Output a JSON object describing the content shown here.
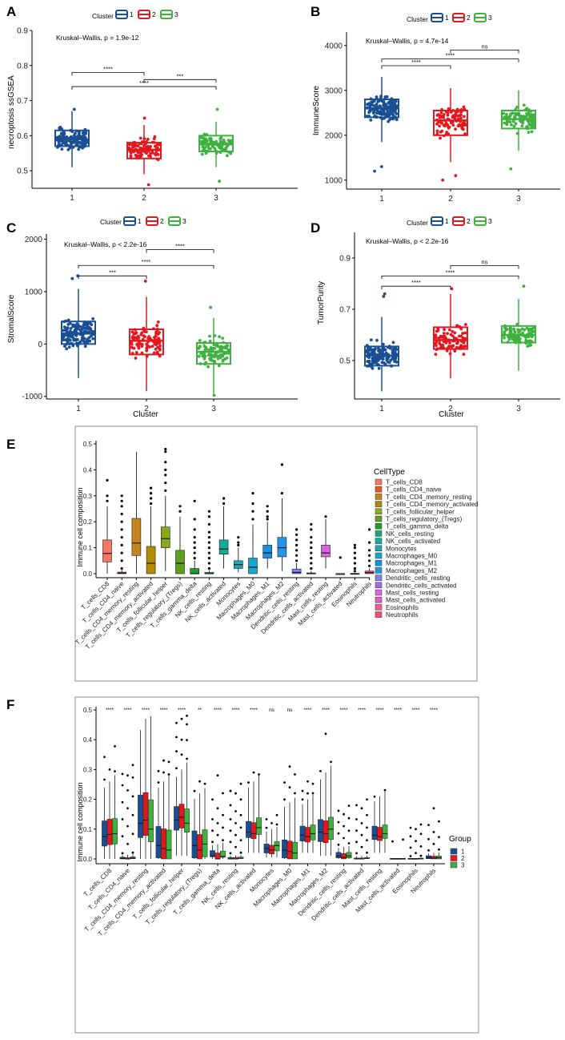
{
  "colors": {
    "c1": "#1B4F93",
    "c2": "#E3181F",
    "c3": "#3EB13E"
  },
  "panels": [
    {
      "label": "A",
      "legend_title": "Cluster",
      "legend_items": [
        "1",
        "2",
        "3"
      ],
      "ylabel": "necroptosis ssGSEA",
      "xlabel": "",
      "stat": "Kruskal–Wallis, p = 1.9e-12",
      "ylim": [
        0.45,
        0.9
      ],
      "yticks": [
        "0.5",
        "0.6",
        "0.7",
        "0.8",
        "0.9"
      ],
      "ytick_values": [
        0.5,
        0.6,
        0.7,
        0.8,
        0.9
      ],
      "categories": [
        "1",
        "2",
        "3"
      ],
      "boxes": [
        {
          "q1": 0.57,
          "med": 0.59,
          "q3": 0.615,
          "lo": 0.51,
          "hi": 0.67,
          "n": 150
        },
        {
          "q1": 0.535,
          "med": 0.56,
          "q3": 0.58,
          "lo": 0.49,
          "hi": 0.63,
          "n": 95
        },
        {
          "q1": 0.555,
          "med": 0.575,
          "q3": 0.6,
          "lo": 0.51,
          "hi": 0.64,
          "n": 95
        }
      ],
      "outliers": [
        [
          0,
          0.675
        ],
        [
          1,
          0.46
        ],
        [
          1,
          0.65
        ],
        [
          2,
          0.47
        ],
        [
          2,
          0.675
        ]
      ],
      "comparisons": [
        {
          "from": 0,
          "to": 1,
          "value": 0.78,
          "label": "****"
        },
        {
          "from": 0,
          "to": 2,
          "value": 0.74,
          "label": "****"
        },
        {
          "from": 1,
          "to": 2,
          "value": 0.76,
          "label": "***"
        }
      ]
    },
    {
      "label": "B",
      "legend_title": "Cluster",
      "legend_items": [
        "1",
        "2",
        "3"
      ],
      "ylabel": "ImmuneScore",
      "xlabel": "",
      "stat": "Kruskal–Wallis, p = 4.7e-14",
      "ylim": [
        800,
        4300
      ],
      "yticks": [
        "1000",
        "2000",
        "3000",
        "4000"
      ],
      "ytick_values": [
        1000,
        2000,
        3000,
        4000
      ],
      "categories": [
        "1",
        "2",
        "3"
      ],
      "boxes": [
        {
          "q1": 2400,
          "med": 2600,
          "q3": 2800,
          "lo": 1850,
          "hi": 3300,
          "n": 150
        },
        {
          "q1": 2000,
          "med": 2330,
          "q3": 2550,
          "lo": 1400,
          "hi": 3050,
          "n": 95
        },
        {
          "q1": 2150,
          "med": 2360,
          "q3": 2550,
          "lo": 1650,
          "hi": 3000,
          "n": 95
        }
      ],
      "outliers": [
        [
          0,
          1200
        ],
        [
          0,
          1300
        ],
        [
          1,
          1000
        ],
        [
          1,
          1100
        ],
        [
          2,
          1250
        ]
      ],
      "comparisons": [
        {
          "from": 0,
          "to": 1,
          "value": 3550,
          "label": "****"
        },
        {
          "from": 0,
          "to": 2,
          "value": 3700,
          "label": "****"
        },
        {
          "from": 1,
          "to": 2,
          "value": 3900,
          "label": "ns"
        }
      ]
    },
    {
      "label": "C",
      "legend_title": "Cluster",
      "legend_items": [
        "1",
        "2",
        "3"
      ],
      "ylabel": "StromalScore",
      "xlabel": "Cluster",
      "stat": "Kruskal–Wallis, p < 2.2e-16",
      "ylim": [
        -1050,
        2100
      ],
      "yticks": [
        "-1000",
        "0",
        "1000",
        "2000"
      ],
      "ytick_values": [
        -1000,
        0,
        1000,
        2000
      ],
      "categories": [
        "1",
        "2",
        "3"
      ],
      "boxes": [
        {
          "q1": 0,
          "med": 200,
          "q3": 430,
          "lo": -650,
          "hi": 1050,
          "n": 150
        },
        {
          "q1": -200,
          "med": 60,
          "q3": 280,
          "lo": -900,
          "hi": 900,
          "n": 95
        },
        {
          "q1": -380,
          "med": -150,
          "q3": 20,
          "lo": -950,
          "hi": 500,
          "n": 95
        }
      ],
      "outliers": [
        [
          0,
          1250
        ],
        [
          0,
          1300
        ],
        [
          1,
          1200
        ],
        [
          2,
          700
        ],
        [
          2,
          -980
        ]
      ],
      "comparisons": [
        {
          "from": 0,
          "to": 1,
          "value": 1300,
          "label": "***"
        },
        {
          "from": 0,
          "to": 2,
          "value": 1500,
          "label": "****"
        },
        {
          "from": 1,
          "to": 2,
          "value": 1800,
          "label": "****"
        }
      ]
    },
    {
      "label": "D",
      "legend_title": "Cluster",
      "legend_items": [
        "1",
        "2",
        "3"
      ],
      "ylabel": "TumorPurity",
      "xlabel": "Cluster",
      "stat": "Kruskal–Wallis, p < 2.2e-16",
      "ylim": [
        0.35,
        1.0
      ],
      "yticks": [
        "0.5",
        "0.7",
        "0.9"
      ],
      "ytick_values": [
        0.5,
        0.7,
        0.9
      ],
      "categories": [
        "1",
        "2",
        "3"
      ],
      "boxes": [
        {
          "q1": 0.48,
          "med": 0.52,
          "q3": 0.555,
          "lo": 0.38,
          "hi": 0.67,
          "n": 150
        },
        {
          "q1": 0.545,
          "med": 0.58,
          "q3": 0.63,
          "lo": 0.43,
          "hi": 0.76,
          "n": 95
        },
        {
          "q1": 0.57,
          "med": 0.6,
          "q3": 0.635,
          "lo": 0.46,
          "hi": 0.74,
          "n": 95
        }
      ],
      "outliers": [
        [
          0,
          0.75
        ],
        [
          0,
          0.76
        ],
        [
          1,
          0.78
        ],
        [
          2,
          0.79
        ]
      ],
      "comparisons": [
        {
          "from": 0,
          "to": 1,
          "value": 0.79,
          "label": "****"
        },
        {
          "from": 0,
          "to": 2,
          "value": 0.83,
          "label": "****"
        },
        {
          "from": 1,
          "to": 2,
          "value": 0.87,
          "label": "ns"
        }
      ]
    }
  ],
  "chart_data": [
    {
      "type": "box",
      "panel": "A",
      "title": "",
      "xlabel": "",
      "ylabel": "necroptosis ssGSEA",
      "categories": [
        "1",
        "2",
        "3"
      ],
      "medians": [
        0.59,
        0.56,
        0.575
      ],
      "annotation": "Kruskal–Wallis, p = 1.9e-12"
    },
    {
      "type": "box",
      "panel": "B",
      "title": "",
      "xlabel": "",
      "ylabel": "ImmuneScore",
      "categories": [
        "1",
        "2",
        "3"
      ],
      "medians": [
        2600,
        2330,
        2360
      ],
      "annotation": "Kruskal–Wallis, p = 4.7e-14"
    },
    {
      "type": "box",
      "panel": "C",
      "title": "",
      "xlabel": "Cluster",
      "ylabel": "StromalScore",
      "categories": [
        "1",
        "2",
        "3"
      ],
      "medians": [
        200,
        60,
        -150
      ],
      "annotation": "Kruskal–Wallis, p < 2.2e-16"
    },
    {
      "type": "box",
      "panel": "D",
      "title": "",
      "xlabel": "Cluster",
      "ylabel": "TumorPurity",
      "categories": [
        "1",
        "2",
        "3"
      ],
      "medians": [
        0.52,
        0.58,
        0.6
      ],
      "annotation": "Kruskal–Wallis, p < 2.2e-16"
    },
    {
      "type": "box",
      "panel": "E",
      "ylabel": "Immune cell composition",
      "ylim": [
        0,
        0.5
      ],
      "legend_title": "CellType",
      "categories": [
        "T_cells_CD8",
        "T_cells_CD4_naive",
        "T_cells_CD4_memory_resting",
        "T_cells_CD4_memory_activated",
        "T_cells_follicular_helper",
        "T_cells_regulatory_(Tregs)",
        "T_cells_gamma_delta",
        "NK_cells_resting",
        "NK_cells_activated",
        "Monocytes",
        "Macrophages_M0",
        "Macrophages_M1",
        "Macrophages_M2",
        "Dendritic_cells_resting",
        "Dendritic_cells_activated",
        "Mast_cells_resting",
        "Mast_cells_activated",
        "Eosinophils",
        "Neutrophils"
      ],
      "colors": [
        "#F07860",
        "#E5582A",
        "#C5851C",
        "#B08A00",
        "#8AA91A",
        "#5F9E20",
        "#1C9E2A",
        "#19A772",
        "#15AA98",
        "#19AAB5",
        "#17A6D0",
        "#1B8FE0",
        "#2296E6",
        "#7B83EC",
        "#A76AE6",
        "#D666E0",
        "#E05CC3",
        "#EC5D9A",
        "#E85577"
      ],
      "boxes": [
        {
          "q1": 0.045,
          "med": 0.078,
          "q3": 0.13,
          "lo": 0,
          "hi": 0.26,
          "out": [
            0.28,
            0.3,
            0.36
          ]
        },
        {
          "q1": 0,
          "med": 0.002,
          "q3": 0.006,
          "lo": 0,
          "hi": 0.014,
          "out": [
            0.02,
            0.05,
            0.08,
            0.11,
            0.14,
            0.17,
            0.2,
            0.23,
            0.26,
            0.28,
            0.3
          ]
        },
        {
          "q1": 0.07,
          "med": 0.118,
          "q3": 0.213,
          "lo": 0,
          "hi": 0.47,
          "out": []
        },
        {
          "q1": 0,
          "med": 0.04,
          "q3": 0.105,
          "lo": 0,
          "hi": 0.26,
          "out": [
            0.27,
            0.29,
            0.31,
            0.33
          ]
        },
        {
          "q1": 0.1,
          "med": 0.135,
          "q3": 0.18,
          "lo": 0.01,
          "hi": 0.3,
          "out": [
            0.32,
            0.35,
            0.38,
            0.4,
            0.43,
            0.47,
            0.48
          ]
        },
        {
          "q1": 0,
          "med": 0.04,
          "q3": 0.09,
          "lo": 0,
          "hi": 0.22,
          "out": [
            0.24,
            0.26
          ]
        },
        {
          "q1": 0,
          "med": 0,
          "q3": 0.02,
          "lo": 0,
          "hi": 0.05,
          "out": [
            0.06,
            0.08,
            0.1,
            0.12,
            0.14,
            0.17,
            0.21,
            0.28
          ]
        },
        {
          "q1": 0,
          "med": 0,
          "q3": 0.005,
          "lo": 0,
          "hi": 0.012,
          "out": [
            0.02,
            0.04,
            0.06,
            0.08,
            0.1,
            0.12,
            0.14,
            0.16,
            0.19,
            0.22,
            0.24
          ]
        },
        {
          "q1": 0.075,
          "med": 0.095,
          "q3": 0.13,
          "lo": 0.02,
          "hi": 0.26,
          "out": [
            0.27,
            0.29
          ]
        },
        {
          "q1": 0.02,
          "med": 0.035,
          "q3": 0.05,
          "lo": 0.005,
          "hi": 0.1,
          "out": [
            0.11,
            0.12,
            0.14
          ]
        },
        {
          "q1": 0,
          "med": 0.025,
          "q3": 0.06,
          "lo": 0,
          "hi": 0.19,
          "out": [
            0.21,
            0.24,
            0.27,
            0.31
          ]
        },
        {
          "q1": 0.06,
          "med": 0.08,
          "q3": 0.11,
          "lo": 0.02,
          "hi": 0.2,
          "out": [
            0.21,
            0.22,
            0.24,
            0.26
          ]
        },
        {
          "q1": 0.065,
          "med": 0.1,
          "q3": 0.14,
          "lo": 0.01,
          "hi": 0.29,
          "out": [
            0.31,
            0.42
          ]
        },
        {
          "q1": 0,
          "med": 0.005,
          "q3": 0.018,
          "lo": 0,
          "hi": 0.04,
          "out": [
            0.05,
            0.07,
            0.09,
            0.11,
            0.13,
            0.15,
            0.17
          ]
        },
        {
          "q1": 0,
          "med": 0,
          "q3": 0.003,
          "lo": 0,
          "hi": 0.01,
          "out": [
            0.02,
            0.04,
            0.06,
            0.08,
            0.1,
            0.12,
            0.14,
            0.17,
            0.19
          ]
        },
        {
          "q1": 0.065,
          "med": 0.08,
          "q3": 0.11,
          "lo": 0.02,
          "hi": 0.21,
          "out": [
            0.22
          ]
        },
        {
          "q1": 0,
          "med": 0,
          "q3": 0,
          "lo": 0,
          "hi": 0,
          "out": [
            0.062
          ]
        },
        {
          "q1": 0,
          "med": 0,
          "q3": 0.001,
          "lo": 0,
          "hi": 0.003,
          "out": [
            0.01,
            0.02,
            0.04,
            0.06,
            0.08,
            0.1,
            0.11
          ]
        },
        {
          "q1": 0,
          "med": 0.004,
          "q3": 0.01,
          "lo": 0,
          "hi": 0.02,
          "out": [
            0.03,
            0.05,
            0.07,
            0.09,
            0.12,
            0.17
          ]
        }
      ]
    },
    {
      "type": "box",
      "panel": "F",
      "ylabel": "Immune cell composition",
      "ylim": [
        0,
        0.5
      ],
      "legend_title": "Group",
      "groups": [
        "1",
        "2",
        "3"
      ],
      "significance": [
        "****",
        "****",
        "****",
        "****",
        "****",
        "**",
        "****",
        "****",
        "****",
        "ns",
        "ns",
        "****",
        "****",
        "****",
        "****",
        "****",
        "****",
        "****",
        "****"
      ],
      "medians_by_group": [
        [
          0.075,
          0.082,
          0.085
        ],
        [
          0.002,
          0,
          0.003
        ],
        [
          0.12,
          0.13,
          0.1
        ],
        [
          0.045,
          0.035,
          0.03
        ],
        [
          0.13,
          0.14,
          0.12
        ],
        [
          0.045,
          0.03,
          0.05
        ],
        [
          0.01,
          0,
          0.008
        ],
        [
          0,
          0,
          0.002
        ],
        [
          0.09,
          0.085,
          0.105
        ],
        [
          0.035,
          0.03,
          0.045
        ],
        [
          0.03,
          0.025,
          0.02
        ],
        [
          0.08,
          0.075,
          0.085
        ],
        [
          0.09,
          0.085,
          0.1
        ],
        [
          0.01,
          0.005,
          0.01
        ],
        [
          0,
          0,
          0.002
        ],
        [
          0.08,
          0.075,
          0.085
        ],
        [
          0,
          0,
          0
        ],
        [
          0,
          0,
          0.001
        ],
        [
          0.005,
          0.003,
          0.004
        ]
      ]
    }
  ]
}
